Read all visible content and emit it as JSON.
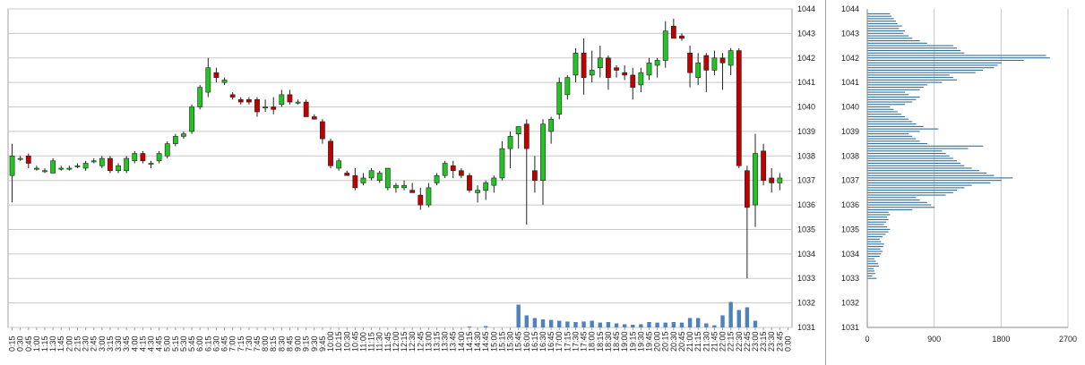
{
  "chart_data": [
    {
      "type": "candlestick",
      "price_axis": {
        "min": 1031,
        "max": 1044,
        "ticks": [
          "1031",
          "1032",
          "1033",
          "1034",
          "1035",
          "1036",
          "1037",
          "1038",
          "1039",
          "1040",
          "1041",
          "1042",
          "1043",
          "1044"
        ]
      },
      "times": [
        "0:15",
        "0:30",
        "0:45",
        "1:00",
        "1:15",
        "1:30",
        "1:45",
        "2:00",
        "2:15",
        "2:30",
        "2:45",
        "3:00",
        "3:15",
        "3:30",
        "3:45",
        "4:00",
        "4:15",
        "4:30",
        "4:45",
        "5:00",
        "5:15",
        "5:30",
        "5:45",
        "6:00",
        "6:15",
        "6:30",
        "6:45",
        "7:00",
        "7:15",
        "7:30",
        "7:45",
        "8:00",
        "8:15",
        "8:30",
        "8:45",
        "9:00",
        "9:15",
        "9:30",
        "9:45",
        "10:00",
        "10:15",
        "10:30",
        "10:45",
        "11:00",
        "11:15",
        "11:30",
        "11:45",
        "12:00",
        "12:15",
        "12:30",
        "12:45",
        "13:00",
        "13:15",
        "13:30",
        "13:45",
        "14:00",
        "14:15",
        "14:30",
        "14:45",
        "15:00",
        "15:15",
        "15:30",
        "15:45",
        "16:00",
        "16:15",
        "16:30",
        "16:45",
        "17:00",
        "17:15",
        "17:30",
        "17:45",
        "18:00",
        "18:15",
        "18:30",
        "18:45",
        "19:00",
        "19:15",
        "19:30",
        "19:45",
        "20:00",
        "20:15",
        "20:30",
        "20:45",
        "21:00",
        "21:15",
        "21:30",
        "21:45",
        "22:00",
        "22:15",
        "22:30",
        "22:45",
        "23:00",
        "23:15",
        "23:30",
        "23:45",
        "0:00"
      ],
      "candles": [
        [
          1037.2,
          1038.5,
          1036.1,
          1038.0
        ],
        [
          1037.9,
          1038.0,
          1037.8,
          1037.9
        ],
        [
          1038.0,
          1038.1,
          1037.5,
          1037.7
        ],
        [
          1037.5,
          1037.6,
          1037.4,
          1037.5
        ],
        [
          1037.4,
          1037.5,
          1037.3,
          1037.4
        ],
        [
          1037.3,
          1037.9,
          1037.3,
          1037.8
        ],
        [
          1037.5,
          1037.6,
          1037.4,
          1037.5
        ],
        [
          1037.5,
          1037.6,
          1037.4,
          1037.5
        ],
        [
          1037.6,
          1037.7,
          1037.5,
          1037.6
        ],
        [
          1037.5,
          1037.8,
          1037.4,
          1037.7
        ],
        [
          1037.8,
          1037.9,
          1037.7,
          1037.8
        ],
        [
          1037.6,
          1038.0,
          1037.5,
          1037.9
        ],
        [
          1037.9,
          1038.0,
          1037.3,
          1037.4
        ],
        [
          1037.4,
          1037.7,
          1037.3,
          1037.6
        ],
        [
          1037.4,
          1038.0,
          1037.3,
          1037.9
        ],
        [
          1037.8,
          1038.2,
          1037.7,
          1038.1
        ],
        [
          1038.1,
          1038.2,
          1037.7,
          1037.8
        ],
        [
          1037.7,
          1037.8,
          1037.5,
          1037.7
        ],
        [
          1037.8,
          1038.2,
          1037.7,
          1038.1
        ],
        [
          1038.0,
          1038.6,
          1037.9,
          1038.5
        ],
        [
          1038.5,
          1038.9,
          1038.4,
          1038.8
        ],
        [
          1038.8,
          1039.0,
          1038.7,
          1038.9
        ],
        [
          1039.0,
          1040.1,
          1038.9,
          1040.0
        ],
        [
          1040.0,
          1040.9,
          1039.9,
          1040.8
        ],
        [
          1040.6,
          1042.0,
          1040.4,
          1041.6
        ],
        [
          1041.4,
          1041.6,
          1041.0,
          1041.2
        ],
        [
          1041.0,
          1041.2,
          1040.9,
          1041.1
        ],
        [
          1040.5,
          1040.6,
          1040.3,
          1040.4
        ],
        [
          1040.3,
          1040.4,
          1040.1,
          1040.2
        ],
        [
          1040.3,
          1040.4,
          1040.1,
          1040.2
        ],
        [
          1040.3,
          1040.4,
          1039.6,
          1039.8
        ],
        [
          1040.0,
          1040.3,
          1039.8,
          1040.0
        ],
        [
          1040.0,
          1040.4,
          1039.7,
          1039.9
        ],
        [
          1040.1,
          1040.7,
          1040.0,
          1040.5
        ],
        [
          1040.5,
          1040.7,
          1040.1,
          1040.2
        ],
        [
          1040.2,
          1040.3,
          1040.1,
          1040.2
        ],
        [
          1040.2,
          1040.3,
          1039.6,
          1039.6
        ],
        [
          1039.6,
          1039.7,
          1039.5,
          1039.5
        ],
        [
          1039.4,
          1039.5,
          1038.5,
          1038.7
        ],
        [
          1038.6,
          1038.7,
          1037.5,
          1037.6
        ],
        [
          1037.5,
          1037.9,
          1037.4,
          1037.8
        ],
        [
          1037.3,
          1037.4,
          1037.2,
          1037.2
        ],
        [
          1037.2,
          1037.5,
          1036.6,
          1036.7
        ],
        [
          1036.9,
          1037.3,
          1036.8,
          1037.1
        ],
        [
          1037.1,
          1037.5,
          1037.0,
          1037.4
        ],
        [
          1037.0,
          1037.4,
          1036.9,
          1037.3
        ],
        [
          1036.7,
          1037.5,
          1036.6,
          1037.5
        ],
        [
          1036.7,
          1036.9,
          1036.5,
          1036.8
        ],
        [
          1036.7,
          1037.0,
          1036.6,
          1036.8
        ],
        [
          1036.6,
          1036.9,
          1036.5,
          1036.5
        ],
        [
          1036.4,
          1036.7,
          1035.8,
          1036.0
        ],
        [
          1036.0,
          1036.9,
          1035.9,
          1036.7
        ],
        [
          1036.9,
          1037.3,
          1036.8,
          1037.2
        ],
        [
          1037.2,
          1037.8,
          1037.1,
          1037.7
        ],
        [
          1037.6,
          1037.8,
          1037.1,
          1037.4
        ],
        [
          1037.4,
          1037.5,
          1037.1,
          1037.2
        ],
        [
          1037.2,
          1037.3,
          1036.5,
          1036.6
        ],
        [
          1036.5,
          1036.8,
          1036.1,
          1036.6
        ],
        [
          1036.6,
          1037.0,
          1036.2,
          1036.9
        ],
        [
          1036.8,
          1037.2,
          1036.5,
          1037.1
        ],
        [
          1037.1,
          1038.6,
          1037.0,
          1038.3
        ],
        [
          1038.3,
          1039.0,
          1037.5,
          1038.8
        ],
        [
          1038.9,
          1039.1,
          1038.3,
          1039.2
        ],
        [
          1039.3,
          1039.5,
          1035.2,
          1038.3
        ],
        [
          1037.4,
          1038.0,
          1036.5,
          1037.0
        ],
        [
          1037.0,
          1039.5,
          1036.0,
          1039.3
        ],
        [
          1039.0,
          1039.6,
          1038.5,
          1039.5
        ],
        [
          1039.7,
          1041.2,
          1039.5,
          1041.0
        ],
        [
          1040.5,
          1041.3,
          1040.3,
          1041.2
        ],
        [
          1041.3,
          1042.4,
          1041.0,
          1042.2
        ],
        [
          1042.2,
          1042.8,
          1040.5,
          1041.2
        ],
        [
          1041.3,
          1042.3,
          1041.0,
          1041.5
        ],
        [
          1041.6,
          1042.5,
          1041.2,
          1042.0
        ],
        [
          1042.0,
          1042.1,
          1040.7,
          1041.2
        ],
        [
          1041.6,
          1041.7,
          1041.2,
          1041.5
        ],
        [
          1041.4,
          1041.7,
          1041.1,
          1041.3
        ],
        [
          1041.3,
          1041.6,
          1040.3,
          1040.8
        ],
        [
          1040.9,
          1041.6,
          1040.6,
          1041.4
        ],
        [
          1041.3,
          1042.0,
          1041.1,
          1041.8
        ],
        [
          1041.7,
          1042.0,
          1041.2,
          1041.9
        ],
        [
          1041.9,
          1043.5,
          1041.6,
          1043.1
        ],
        [
          1043.3,
          1043.6,
          1042.9,
          1042.8
        ],
        [
          1042.9,
          1043.0,
          1042.7,
          1042.8
        ],
        [
          1042.2,
          1042.5,
          1040.8,
          1041.4
        ],
        [
          1041.2,
          1042.2,
          1040.9,
          1041.8
        ],
        [
          1042.1,
          1042.2,
          1040.6,
          1041.5
        ],
        [
          1041.5,
          1042.3,
          1041.3,
          1042.0
        ],
        [
          1042.0,
          1042.2,
          1040.7,
          1041.8
        ],
        [
          1041.7,
          1042.4,
          1041.3,
          1042.3
        ],
        [
          1042.3,
          1042.4,
          1037.5,
          1037.6
        ],
        [
          1037.4,
          1037.6,
          1033.0,
          1035.9
        ],
        [
          1036.0,
          1038.9,
          1035.1,
          1038.1
        ],
        [
          1038.2,
          1038.5,
          1036.8,
          1037.0
        ],
        [
          1037.1,
          1037.5,
          1036.5,
          1036.9
        ],
        [
          1036.9,
          1037.3,
          1036.6,
          1037.1
        ]
      ],
      "volume_bars": [
        0,
        0,
        0,
        0,
        0,
        0,
        0,
        0,
        0,
        0,
        0,
        0,
        0,
        0,
        0,
        0,
        0,
        0,
        0,
        0,
        0,
        0,
        0,
        0,
        0,
        0,
        0,
        0,
        0,
        0,
        0,
        0,
        0,
        0,
        0,
        0,
        0,
        0,
        0,
        0,
        0,
        0,
        0,
        0,
        0,
        0,
        0,
        0,
        0,
        0,
        0,
        0,
        0,
        0,
        0,
        0,
        0,
        0,
        0,
        0,
        0,
        0,
        0,
        0,
        0,
        0,
        0,
        0,
        0,
        0,
        0,
        0,
        0,
        0,
        0,
        0,
        0,
        0,
        0,
        0,
        0,
        0,
        0,
        0,
        0,
        0,
        0,
        0,
        0,
        0,
        0,
        0,
        0,
        0,
        0,
        0
      ],
      "volume_spikes": [
        [
          62,
          0.85
        ],
        [
          63,
          0.45
        ],
        [
          64,
          0.35
        ],
        [
          65,
          0.3
        ],
        [
          66,
          0.28
        ],
        [
          67,
          0.25
        ],
        [
          68,
          0.22
        ],
        [
          69,
          0.2
        ],
        [
          70,
          0.22
        ],
        [
          71,
          0.25
        ],
        [
          72,
          0.18
        ],
        [
          73,
          0.2
        ],
        [
          74,
          0.15
        ],
        [
          75,
          0.12
        ],
        [
          76,
          0.1
        ],
        [
          77,
          0.12
        ],
        [
          78,
          0.2
        ],
        [
          79,
          0.18
        ],
        [
          80,
          0.18
        ],
        [
          81,
          0.2
        ],
        [
          82,
          0.18
        ],
        [
          83,
          0.35
        ],
        [
          84,
          0.35
        ],
        [
          85,
          0.15
        ],
        [
          86,
          0.08
        ],
        [
          87,
          0.45
        ],
        [
          88,
          0.95
        ],
        [
          89,
          0.65
        ],
        [
          90,
          0.75
        ],
        [
          91,
          0.25
        ],
        [
          56,
          0.03
        ],
        [
          58,
          0.05
        ]
      ],
      "volume_colors": {
        "bar": "#4f81bd"
      },
      "colors": {
        "up": "#22c322",
        "down": "#c00000",
        "wick": "#222222",
        "grid": "#c8c8c8"
      }
    },
    {
      "type": "bar",
      "orientation": "horizontal",
      "x_axis": {
        "min": 0,
        "max": 2700,
        "ticks": [
          "0",
          "900",
          "1800",
          "2700"
        ]
      },
      "y_axis": {
        "min": 1031,
        "max": 1044,
        "ticks": [
          "1031",
          "1032",
          "1033",
          "1034",
          "1035",
          "1036",
          "1037",
          "1038",
          "1039",
          "1040",
          "1041",
          "1042",
          "1043",
          "1044"
        ]
      },
      "levels_step": 0.1,
      "levels_start": 1033.0,
      "values": [
        120,
        60,
        100,
        90,
        80,
        150,
        140,
        110,
        90,
        160,
        180,
        200,
        170,
        210,
        220,
        180,
        160,
        200,
        240,
        280,
        300,
        260,
        220,
        250,
        280,
        260,
        300,
        280,
        600,
        900,
        850,
        800,
        700,
        650,
        1050,
        1150,
        1200,
        1300,
        1400,
        1650,
        1800,
        1950,
        1700,
        1600,
        1500,
        1400,
        1300,
        1250,
        1200,
        1150,
        1100,
        1050,
        1000,
        1350,
        1550,
        800,
        700,
        650,
        600,
        550,
        700,
        950,
        750,
        650,
        600,
        550,
        500,
        450,
        400,
        350,
        300,
        500,
        600,
        650,
        700,
        550,
        500,
        700,
        750,
        800,
        1000,
        1200,
        1150,
        1100,
        1450,
        1550,
        1700,
        1750,
        1800,
        2100,
        2450,
        2400,
        1300,
        1250,
        1200,
        1150,
        800,
        700,
        600,
        550,
        480,
        500,
        420,
        460,
        400,
        380,
        350,
        320,
        300
      ],
      "bar_color": "#31709a"
    }
  ]
}
